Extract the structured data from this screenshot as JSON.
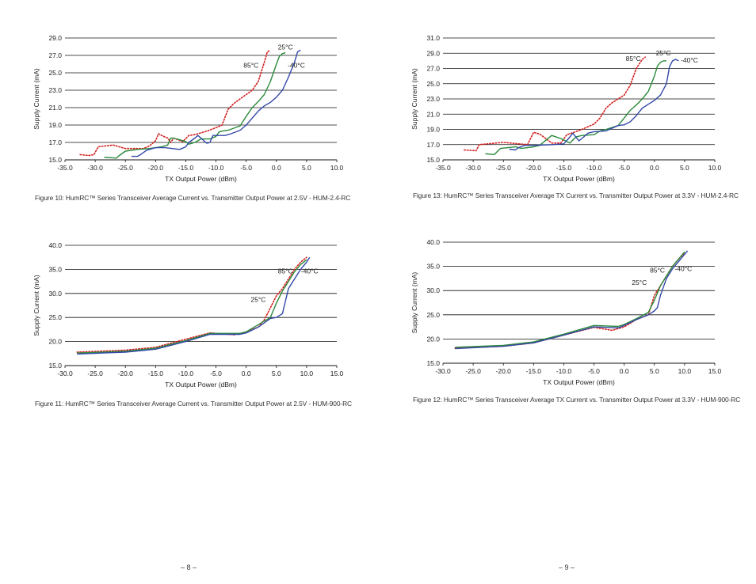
{
  "captions": [
    "Figure 10: HumRC™ Series Transceiver Average Current vs. Transmitter Output Power at 2.5V - HUM-2.4-RC",
    "Figure 11: HumRC™ Series Transceiver Average Current vs. Transmitter Output Power at 2.5V - HUM-900-RC",
    "Figure 13: HumRC™ Series Transceiver Average TX Current vs. Transmitter Output Power at 3.3V - HUM-2.4-RC",
    "Figure 12: HumRC™ Series Transceiver Average TX Current vs. Transmitter Output Power at 3.3V - HUM-900-RC"
  ],
  "pages": {
    "left": "– 8 –",
    "right": "– 9 –"
  },
  "colors": {
    "c25": "#2a8a3a",
    "cneg40": "#3349a8",
    "c85": "#d42020",
    "grid": "#111111"
  },
  "chart_data": [
    {
      "type": "line",
      "xlabel": "TX Output Power (dBm)",
      "ylabel": "Supply Current (mA)",
      "xlim": [
        -35,
        10
      ],
      "ylim": [
        15,
        29
      ],
      "xticks": [
        -35,
        -30,
        -25,
        -20,
        -15,
        -10,
        -5,
        0,
        5,
        10
      ],
      "yticks": [
        15,
        17,
        19,
        21,
        23,
        25,
        27,
        29
      ],
      "xtick_labels": [
        "-35.0",
        "-30.0",
        "-25.0",
        "-20.0",
        "-15.0",
        "-10.0",
        "-5.0",
        "0.0",
        "5.0",
        "10.0"
      ],
      "ytick_labels": [
        "15.0",
        "17.0",
        "19.0",
        "21.0",
        "23.0",
        "25.0",
        "27.0",
        "29.0"
      ],
      "grid": "horizontal",
      "series": [
        {
          "name": "85°C",
          "style": "dotted",
          "color_key": "c85",
          "x": [
            -32.5,
            -31,
            -30.2,
            -29.5,
            -27,
            -25,
            -22,
            -21,
            -20,
            -19.5,
            -19,
            -18,
            -17.5,
            -17,
            -15.5,
            -14.5,
            -13.5,
            -11.5,
            -10,
            -9,
            -8,
            -7,
            -6,
            -4,
            -3,
            -2,
            -1.5,
            -1
          ],
          "y": [
            15.6,
            15.5,
            15.6,
            16.5,
            16.7,
            16.3,
            16.3,
            16.6,
            17.2,
            18,
            17.8,
            17.5,
            17,
            17.5,
            17.1,
            17.8,
            17.9,
            18.3,
            18.7,
            19,
            20.8,
            21.5,
            22,
            23,
            24,
            26.2,
            27.4,
            27.6
          ]
        },
        {
          "name": "25°C",
          "style": "solid",
          "color_key": "c25",
          "x": [
            -28.5,
            -26.5,
            -26,
            -25,
            -23,
            -21,
            -19,
            -18,
            -17.5,
            -17,
            -16,
            -15,
            -14.5,
            -13.5,
            -12.5,
            -11,
            -10,
            -9.5,
            -9,
            -8,
            -6,
            -5,
            -4,
            -3,
            -2,
            -1,
            0,
            0.5,
            1,
            1.5
          ],
          "y": [
            15.3,
            15.2,
            15.5,
            16,
            16.2,
            16.3,
            16.5,
            16.7,
            17.5,
            17.5,
            17.3,
            17.1,
            16.8,
            17,
            17.4,
            17.4,
            17.7,
            18.2,
            18.3,
            18.4,
            18.9,
            20,
            21,
            21.7,
            22.5,
            24,
            26,
            26.9,
            27.2,
            27.3
          ]
        },
        {
          "name": "-40°C",
          "style": "solid",
          "color_key": "cneg40",
          "x": [
            -24,
            -23,
            -22.5,
            -21.5,
            -20,
            -18.5,
            -16,
            -15,
            -14.5,
            -13.5,
            -13,
            -12,
            -11.5,
            -11,
            -10.5,
            -8.5,
            -7.5,
            -6,
            -5,
            -4,
            -3,
            -2,
            -1,
            0,
            1,
            2,
            3,
            3.5,
            4
          ],
          "y": [
            15.4,
            15.4,
            15.6,
            16.1,
            16.4,
            16.4,
            16.2,
            16.5,
            17,
            17.5,
            17.8,
            17.2,
            16.9,
            17,
            17.8,
            17.8,
            18,
            18.4,
            19,
            19.8,
            20.6,
            21.2,
            21.6,
            22.2,
            23,
            24.5,
            26.2,
            27.4,
            27.6
          ]
        }
      ],
      "annotations": [
        {
          "text": "25°C",
          "x": 1.5,
          "y": 27.7
        },
        {
          "text": "85°C",
          "x": -4.2,
          "y": 25.6
        },
        {
          "text": "-40°C",
          "x": 3.3,
          "y": 25.6
        }
      ]
    },
    {
      "type": "line",
      "xlabel": "TX Output Power (dBm)",
      "ylabel": "Supply Current (mA)",
      "xlim": [
        -30,
        15
      ],
      "ylim": [
        15,
        40
      ],
      "xticks": [
        -30,
        -25,
        -20,
        -15,
        -10,
        -5,
        0,
        5,
        10,
        15
      ],
      "yticks": [
        15,
        20,
        25,
        30,
        35,
        40
      ],
      "xtick_labels": [
        "-30.0",
        "-25.0",
        "-20.0",
        "-15.0",
        "-10.0",
        "-5.0",
        "0.0",
        "5.0",
        "10.0",
        "15.0"
      ],
      "ytick_labels": [
        "15.0",
        "20.0",
        "25.0",
        "30.0",
        "35.0",
        "40.0"
      ],
      "grid": "horizontal",
      "series": [
        {
          "name": "85°C",
          "style": "dotted",
          "color_key": "c85",
          "x": [
            -28,
            -20,
            -15,
            -10,
            -6,
            -2,
            0,
            2,
            3,
            4,
            5,
            6,
            7,
            8,
            9,
            10
          ],
          "y": [
            17.8,
            18.2,
            18.8,
            20.5,
            21.8,
            21.4,
            22,
            23,
            24.5,
            27,
            29.5,
            31,
            33,
            35,
            36.5,
            37.5
          ]
        },
        {
          "name": "25°C",
          "style": "solid",
          "color_key": "c25",
          "x": [
            -28,
            -20,
            -15,
            -10,
            -6,
            -1,
            0,
            2,
            4,
            5,
            6,
            7,
            8,
            9,
            10
          ],
          "y": [
            17.6,
            18.0,
            18.6,
            20.2,
            21.7,
            21.7,
            22,
            23.5,
            25,
            28,
            30.5,
            32.5,
            34.5,
            36,
            37
          ]
        },
        {
          "name": "-40°C",
          "style": "solid",
          "color_key": "cneg40",
          "x": [
            -28,
            -20,
            -15,
            -10,
            -6,
            -1,
            0,
            2,
            4,
            5,
            6,
            7,
            8,
            9,
            10,
            10.5
          ],
          "y": [
            17.4,
            17.8,
            18.4,
            20,
            21.5,
            21.5,
            21.8,
            23,
            24.8,
            25,
            25.8,
            31,
            33,
            35,
            36.5,
            37.5
          ]
        }
      ],
      "annotations": [
        {
          "text": "85°C",
          "x": 6.5,
          "y": 34.2
        },
        {
          "text": "-40°C",
          "x": 10.5,
          "y": 34.2
        },
        {
          "text": "25°C",
          "x": 2,
          "y": 28.2
        }
      ]
    },
    {
      "type": "line",
      "xlabel": "TX Output Power (dBm)",
      "ylabel": "Supply Current (mA)",
      "xlim": [
        -35,
        10
      ],
      "ylim": [
        15,
        31
      ],
      "xticks": [
        -35,
        -30,
        -25,
        -20,
        -15,
        -10,
        -5,
        0,
        5,
        10
      ],
      "yticks": [
        15,
        17,
        19,
        21,
        23,
        25,
        27,
        29,
        31
      ],
      "xtick_labels": [
        "-35.0",
        "-30.0",
        "-25.0",
        "-20.0",
        "-15.0",
        "-10.0",
        "-5.0",
        "0.0",
        "5.0",
        "10.0"
      ],
      "ytick_labels": [
        "15.0",
        "17.0",
        "19.0",
        "21.0",
        "23.0",
        "25.0",
        "27.0",
        "29.0",
        "31.0"
      ],
      "grid": "horizontal",
      "series": [
        {
          "name": "85°C",
          "style": "dotted",
          "color_key": "c85",
          "x": [
            -31.5,
            -29.5,
            -29,
            -25,
            -21,
            -20,
            -19,
            -18,
            -17,
            -15.5,
            -14.5,
            -13,
            -12,
            -10,
            -9,
            -8,
            -7,
            -5,
            -4,
            -3,
            -2,
            -1.5
          ],
          "y": [
            16.3,
            16.2,
            17,
            17.3,
            17,
            18.6,
            18.4,
            17.8,
            17.2,
            17.2,
            18.3,
            18.7,
            19,
            19.7,
            20.5,
            21.8,
            22.5,
            23.5,
            24.8,
            27,
            28.2,
            28.5
          ]
        },
        {
          "name": "25°C",
          "style": "solid",
          "color_key": "c25",
          "x": [
            -28,
            -26.5,
            -25.5,
            -23,
            -22,
            -20,
            -19,
            -17,
            -15.5,
            -14,
            -13,
            -12,
            -10,
            -9,
            -8,
            -6,
            -5,
            -4,
            -3,
            -2,
            -1,
            0,
            0.5,
            1,
            1.5,
            2
          ],
          "y": [
            15.8,
            15.7,
            16.5,
            16.7,
            16.5,
            16.7,
            16.9,
            18.2,
            17.8,
            17.2,
            18,
            18.2,
            18.3,
            18.8,
            19,
            19.5,
            20.5,
            21.5,
            22.2,
            23,
            24,
            26,
            27.3,
            27.8,
            28,
            28
          ]
        },
        {
          "name": "-40°C",
          "style": "solid",
          "color_key": "cneg40",
          "x": [
            -24,
            -23,
            -22.5,
            -21.5,
            -20,
            -17,
            -15,
            -14,
            -13.5,
            -12.5,
            -12,
            -11,
            -10,
            -8,
            -6,
            -5,
            -4,
            -3,
            -2,
            -1,
            0,
            1,
            2,
            2.5,
            3,
            3.5,
            4
          ],
          "y": [
            16.4,
            16.3,
            16.6,
            16.9,
            16.9,
            17,
            17.1,
            18,
            18.5,
            17.5,
            17.8,
            18.5,
            18.7,
            18.8,
            19.5,
            19.6,
            20,
            20.8,
            21.8,
            22.3,
            22.8,
            23.5,
            25,
            27.2,
            28,
            28.2,
            28
          ]
        }
      ],
      "annotations": [
        {
          "text": "85°C",
          "x": -3.5,
          "y": 28.0
        },
        {
          "text": "25°C",
          "x": 1.5,
          "y": 28.7
        },
        {
          "text": "-40°C",
          "x": 5.8,
          "y": 27.8
        }
      ]
    },
    {
      "type": "line",
      "xlabel": "TX Output Power (dBm)",
      "ylabel": "Supply Current (mA)",
      "xlim": [
        -30,
        15
      ],
      "ylim": [
        15,
        40
      ],
      "xticks": [
        -30,
        -25,
        -20,
        -15,
        -10,
        -5,
        0,
        5,
        10,
        15
      ],
      "yticks": [
        15,
        20,
        25,
        30,
        35,
        40
      ],
      "xtick_labels": [
        "-30.0",
        "-25.0",
        "-20.0",
        "-15.0",
        "-10.0",
        "-5.0",
        "0.0",
        "5.0",
        "10.0",
        "15.0"
      ],
      "ytick_labels": [
        "15.0",
        "20.0",
        "25.0",
        "30.0",
        "35.0",
        "40.0"
      ],
      "grid": "horizontal",
      "series": [
        {
          "name": "85°C",
          "style": "dotted",
          "color_key": "c85",
          "x": [
            -28,
            -20,
            -15,
            -10,
            -5,
            -2,
            0,
            2,
            4,
            5,
            6,
            7,
            8,
            9,
            10
          ],
          "y": [
            18.1,
            18.5,
            19.2,
            20.8,
            22.4,
            21.8,
            22.5,
            24,
            25,
            29,
            31,
            33,
            35,
            36.5,
            37.8
          ]
        },
        {
          "name": "25°C",
          "style": "solid",
          "color_key": "c25",
          "x": [
            -28,
            -20,
            -15,
            -10,
            -5,
            -1,
            0,
            2,
            4,
            5,
            6,
            7,
            8,
            9,
            10
          ],
          "y": [
            18.3,
            18.7,
            19.4,
            21,
            22.8,
            22.6,
            23,
            24.2,
            25.5,
            28,
            31,
            33,
            35,
            36.5,
            38
          ]
        },
        {
          "name": "-40°C",
          "style": "solid",
          "color_key": "cneg40",
          "x": [
            -28,
            -20,
            -15,
            -10,
            -5,
            -1,
            0,
            2,
            4,
            5,
            5.5,
            6,
            7,
            8,
            9,
            10,
            10.5
          ],
          "y": [
            18.0,
            18.5,
            19.2,
            20.8,
            22.5,
            22.3,
            22.8,
            24,
            25,
            25.8,
            26.5,
            29,
            32.5,
            34.5,
            36,
            37.5,
            38.2
          ]
        }
      ],
      "annotations": [
        {
          "text": "85°C",
          "x": 5.5,
          "y": 33.7
        },
        {
          "text": "-40°C",
          "x": 9.8,
          "y": 34
        },
        {
          "text": "25°C",
          "x": 2.5,
          "y": 31.2
        }
      ]
    }
  ]
}
